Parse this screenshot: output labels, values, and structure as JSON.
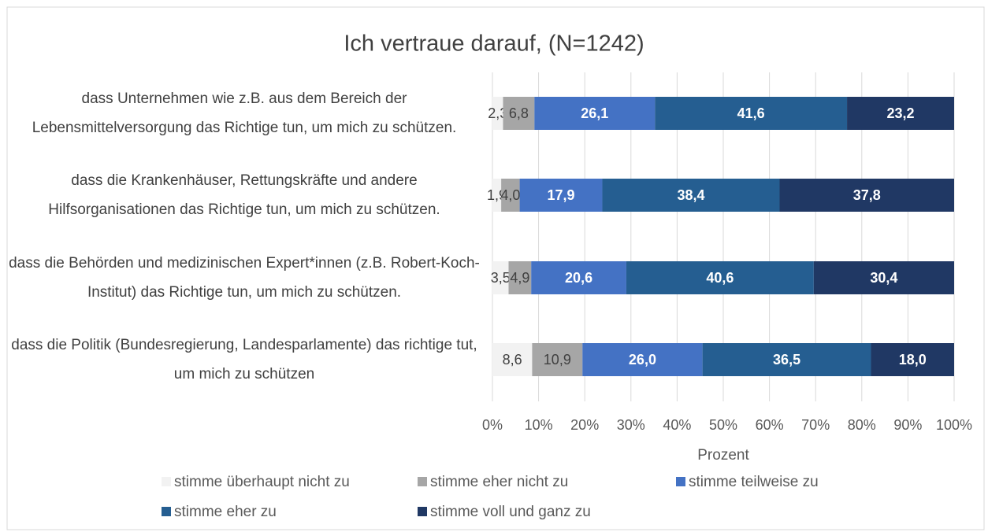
{
  "chart_data": {
    "type": "stacked_barh",
    "title": "Ich vertraue darauf, (N=1242)",
    "categories": [
      "dass Unternehmen wie z.B. aus dem Bereich der Lebensmittelversorgung das Richtige tun, um mich zu schützen.",
      "dass die Krankenhäuser, Rettungskräfte und andere Hilfsorganisationen das Richtige tun, um mich zu schützen.",
      "dass die Behörden und medizinischen Expert*innen (z.B. Robert-Koch-Institut) das Richtige tun, um mich zu schützen.",
      "dass die Politik (Bundesregierung, Landesparlamente) das richtige tut, um mich zu schützen"
    ],
    "series": [
      {
        "name": "stimme überhaupt nicht zu",
        "color": "#f2f2f2",
        "values": [
          2.3,
          1.9,
          3.5,
          8.6
        ],
        "value_labels": [
          "2,3",
          "1,9",
          "3,5",
          "8,6"
        ]
      },
      {
        "name": "stimme eher nicht zu",
        "color": "#a6a6a6",
        "values": [
          6.8,
          4.0,
          4.9,
          10.9
        ],
        "value_labels": [
          "6,8",
          "4,0",
          "4,9",
          "10,9"
        ]
      },
      {
        "name": "stimme teilweise zu",
        "color": "#4472c4",
        "values": [
          26.1,
          17.9,
          20.6,
          26.0
        ],
        "value_labels": [
          "26,1",
          "17,9",
          "20,6",
          "26,0"
        ]
      },
      {
        "name": "stimme eher zu",
        "color": "#255e91",
        "values": [
          41.6,
          38.4,
          40.6,
          36.5
        ],
        "value_labels": [
          "41,6",
          "38,4",
          "40,6",
          "36,5"
        ]
      },
      {
        "name": "stimme voll und ganz zu",
        "color": "#203864",
        "values": [
          23.2,
          37.8,
          30.4,
          18.0
        ],
        "value_labels": [
          "23,2",
          "37,8",
          "30,4",
          "18,0"
        ]
      }
    ],
    "xlabel": "Prozent",
    "xlim": [
      0,
      100
    ],
    "xticks": [
      {
        "value": 0,
        "label": "0%"
      },
      {
        "value": 10,
        "label": "10%"
      },
      {
        "value": 20,
        "label": "20%"
      },
      {
        "value": 30,
        "label": "30%"
      },
      {
        "value": 40,
        "label": "40%"
      },
      {
        "value": 50,
        "label": "50%"
      },
      {
        "value": 60,
        "label": "60%"
      },
      {
        "value": 70,
        "label": "70%"
      },
      {
        "value": 80,
        "label": "80%"
      },
      {
        "value": 90,
        "label": "90%"
      },
      {
        "value": 100,
        "label": "100%"
      }
    ],
    "grid": true
  }
}
